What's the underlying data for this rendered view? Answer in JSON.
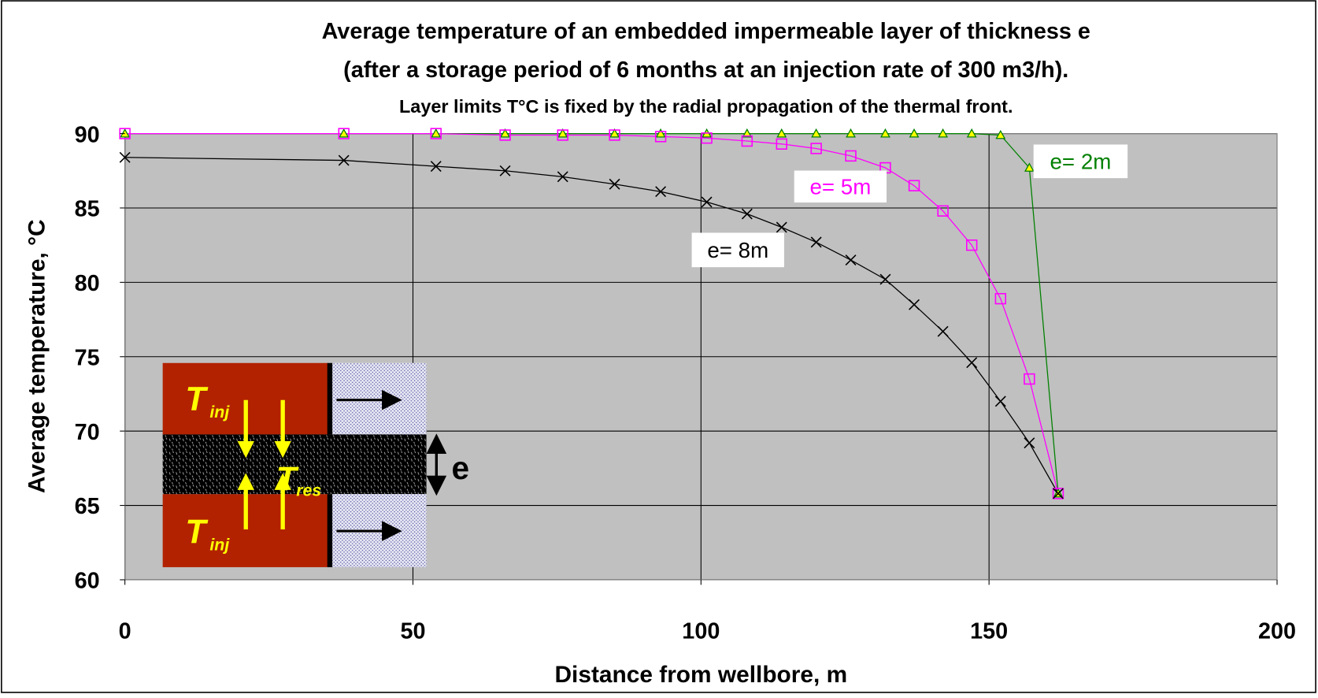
{
  "chart_data": {
    "type": "line",
    "title": "Average temperature of an embedded impermeable layer of thickness e",
    "subtitle": "(after a storage period of 6 months at an injection rate of 300 m3/h).",
    "note": "Layer limits T°C is fixed by the radial propagation of the thermal front.",
    "xlabel": "Distance from wellbore, m",
    "ylabel": "Average temperature, °C",
    "xlim": [
      0,
      200
    ],
    "xticks": [
      0,
      50,
      100,
      150,
      200
    ],
    "ylim": [
      60,
      90
    ],
    "yticks": [
      60,
      65,
      70,
      75,
      80,
      85,
      90
    ],
    "grid": true,
    "series": [
      {
        "name": "e= 2m",
        "color": "#008000",
        "marker": "triangle",
        "x": [
          0,
          38,
          54,
          66,
          76,
          85,
          93,
          101,
          108,
          114,
          120,
          126,
          132,
          137,
          142,
          147,
          152,
          157,
          162
        ],
        "values": [
          90,
          90,
          90,
          90,
          90,
          90,
          90,
          90,
          90,
          90,
          90,
          90,
          90,
          90,
          90,
          90,
          89.9,
          87.7,
          65.8
        ]
      },
      {
        "name": "e= 5m",
        "color": "#ff00ff",
        "marker": "square",
        "x": [
          0,
          38,
          54,
          66,
          76,
          85,
          93,
          101,
          108,
          114,
          120,
          126,
          132,
          137,
          142,
          147,
          152,
          157,
          162
        ],
        "values": [
          90,
          90,
          90,
          89.9,
          89.9,
          89.9,
          89.8,
          89.7,
          89.5,
          89.3,
          89.0,
          88.5,
          87.7,
          86.5,
          84.8,
          82.5,
          78.9,
          73.5,
          65.8
        ]
      },
      {
        "name": "e= 8m",
        "color": "#000000",
        "marker": "cross",
        "x": [
          0,
          38,
          54,
          66,
          76,
          85,
          93,
          101,
          108,
          114,
          120,
          126,
          132,
          137,
          142,
          147,
          152,
          157,
          162
        ],
        "values": [
          88.4,
          88.2,
          87.8,
          87.5,
          87.1,
          86.6,
          86.1,
          85.4,
          84.6,
          83.7,
          82.7,
          81.5,
          80.2,
          78.5,
          76.7,
          74.6,
          72.0,
          69.2,
          65.8
        ]
      }
    ],
    "inset_labels": [
      {
        "text": "T",
        "sub": "inj"
      },
      {
        "text": "T",
        "sub": "res"
      },
      {
        "text": "T",
        "sub": "inj"
      }
    ],
    "inset_thickness_label": "e"
  }
}
